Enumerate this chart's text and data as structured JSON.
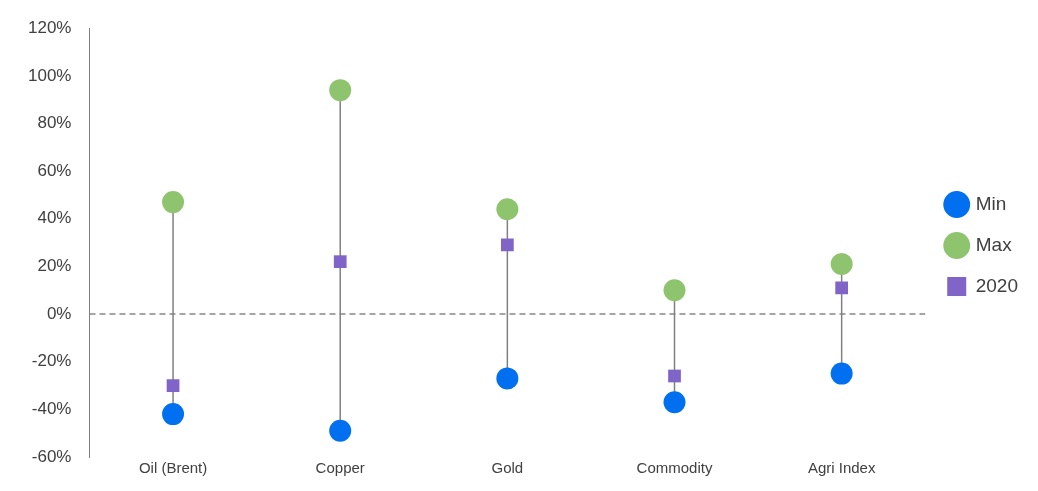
{
  "chart_data": {
    "type": "scatter",
    "categories": [
      "Oil (Brent)",
      "Copper",
      "Gold",
      "Commodity",
      "Agri Index"
    ],
    "series": [
      {
        "name": "Min",
        "color": "#0070f0",
        "marker": "circle",
        "values": [
          -42,
          -49,
          -27,
          -37,
          -25
        ]
      },
      {
        "name": "Max",
        "color": "#8fc46f",
        "marker": "circle",
        "values": [
          47,
          94,
          44,
          10,
          21
        ]
      },
      {
        "name": "2020",
        "color": "#8064c8",
        "marker": "square",
        "values": [
          -30,
          22,
          29,
          -26,
          11
        ]
      }
    ],
    "ylim": [
      -60,
      120
    ],
    "yticks": [
      {
        "value": -60,
        "label": "-60%"
      },
      {
        "value": -40,
        "label": "-40%"
      },
      {
        "value": -20,
        "label": "-20%"
      },
      {
        "value": 0,
        "label": "0%"
      },
      {
        "value": 20,
        "label": "20%"
      },
      {
        "value": 40,
        "label": "40%"
      },
      {
        "value": 60,
        "label": "60%"
      },
      {
        "value": 80,
        "label": "80%"
      },
      {
        "value": 100,
        "label": "100%"
      },
      {
        "value": 120,
        "label": "120%"
      }
    ],
    "ref_lines": [
      {
        "axis": "y",
        "value": 0,
        "color": "#888888",
        "line_style": "dashed"
      }
    ],
    "grid": false,
    "legend": "right"
  }
}
